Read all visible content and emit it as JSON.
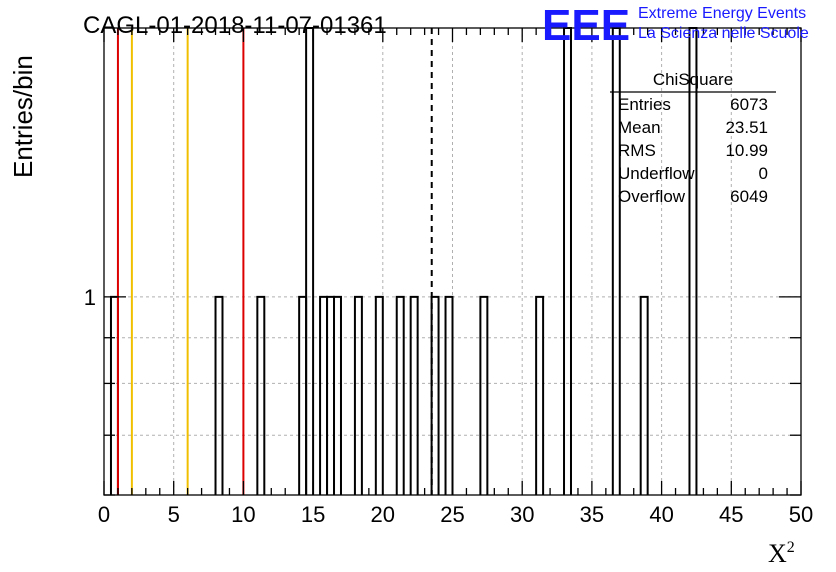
{
  "header": {
    "run_title": "CAGL-01-2018-11-07-01361",
    "logo_text": "EEE",
    "logo_line1": "Extreme Energy Events",
    "logo_line2": "La Scienza nelle Scuole"
  },
  "colors": {
    "logo": "#1a1aff",
    "hist_line": "#000000",
    "grid": "#b0b0b0",
    "red_line": "#dd0000",
    "yellow_line": "#f0c000"
  },
  "stats": {
    "title": "ChiSquare",
    "rows": [
      {
        "label": "Entries",
        "value": "6073"
      },
      {
        "label": "Mean",
        "value": "23.51"
      },
      {
        "label": "RMS",
        "value": "10.99"
      },
      {
        "label": "Underflow",
        "value": "0"
      },
      {
        "label": "Overflow",
        "value": "6049"
      }
    ]
  },
  "chart_data": {
    "type": "bar",
    "title": "CAGL-01-2018-11-07-01361",
    "xlabel": "X",
    "xlabel_sup": "2",
    "ylabel": "Entries/bin",
    "xlim": [
      0,
      50
    ],
    "ylim_log": [
      0.6,
      2.0
    ],
    "y_scale": "log",
    "grid": true,
    "x_ticks": [
      0,
      5,
      10,
      15,
      20,
      25,
      30,
      35,
      40,
      45,
      50
    ],
    "y_tick_labels": [
      {
        "value": 1,
        "label": "1"
      }
    ],
    "bin_width": 0.5,
    "bins": [
      {
        "x": 0.5,
        "count": 1
      },
      {
        "x": 8.0,
        "count": 1
      },
      {
        "x": 11.0,
        "count": 1
      },
      {
        "x": 14.0,
        "count": 1
      },
      {
        "x": 14.5,
        "count": 2
      },
      {
        "x": 15.5,
        "count": 1
      },
      {
        "x": 16.0,
        "count": 1
      },
      {
        "x": 16.5,
        "count": 1
      },
      {
        "x": 18.0,
        "count": 1
      },
      {
        "x": 19.5,
        "count": 1
      },
      {
        "x": 21.0,
        "count": 1
      },
      {
        "x": 22.0,
        "count": 1
      },
      {
        "x": 23.5,
        "count": 1
      },
      {
        "x": 24.5,
        "count": 1
      },
      {
        "x": 27.0,
        "count": 1
      },
      {
        "x": 31.0,
        "count": 1
      },
      {
        "x": 33.0,
        "count": 2
      },
      {
        "x": 36.5,
        "count": 2
      },
      {
        "x": 38.5,
        "count": 1
      },
      {
        "x": 42.0,
        "count": 2
      }
    ],
    "vertical_lines": [
      {
        "x": 1,
        "style": "red"
      },
      {
        "x": 10,
        "style": "red"
      },
      {
        "x": 2,
        "style": "yellow"
      },
      {
        "x": 6,
        "style": "yellow"
      },
      {
        "x": 23.51,
        "style": "dashed"
      }
    ]
  }
}
